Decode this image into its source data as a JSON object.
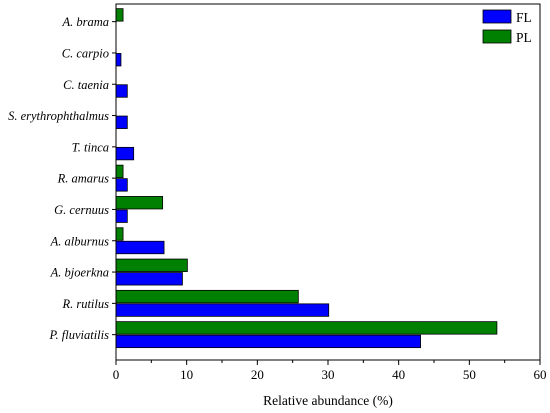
{
  "chart_data": {
    "type": "bar",
    "orientation": "horizontal",
    "categories": [
      "A. brama",
      "C. carpio",
      "C. taenia",
      "S. erythrophthalmus",
      "T. tinca",
      "R. amarus",
      "G. cernuus",
      "A. alburnus",
      "A. bjoerkna",
      "R. rutilus",
      "P. fluviatilis"
    ],
    "series": [
      {
        "name": "FL",
        "color": "#0000ff",
        "values": [
          0,
          0.7,
          1.6,
          1.6,
          2.5,
          1.6,
          1.6,
          6.8,
          9.4,
          30.1,
          43.1
        ]
      },
      {
        "name": "PL",
        "color": "#008000",
        "values": [
          1.0,
          0,
          0,
          0,
          0,
          1.0,
          6.6,
          1.0,
          10.1,
          25.8,
          53.9
        ]
      }
    ],
    "xlabel": "Relative abundance (%)",
    "ylabel": "",
    "xlim": [
      0,
      60
    ],
    "xticks": [
      0,
      10,
      20,
      30,
      40,
      50,
      60
    ],
    "grid": false,
    "legend_position": "top-right"
  }
}
